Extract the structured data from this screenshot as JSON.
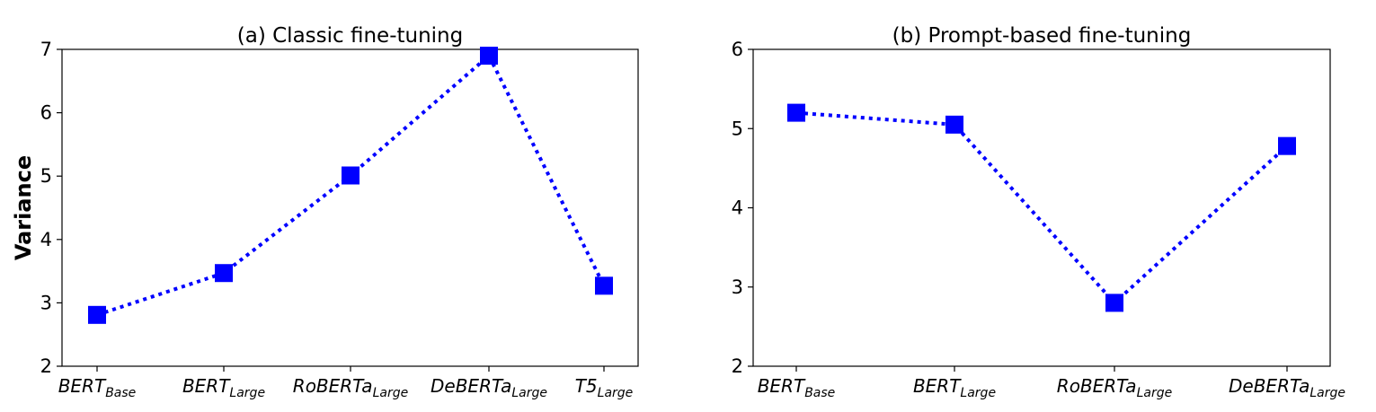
{
  "chart_data": [
    {
      "type": "line",
      "title": "(a) Classic fine-tuning",
      "ylabel": "Variance",
      "xlabel": "",
      "ylim": [
        2,
        7
      ],
      "yticks": [
        2,
        3,
        4,
        5,
        6,
        7
      ],
      "categories": [
        {
          "base": "BERT",
          "sub": "Base"
        },
        {
          "base": "BERT",
          "sub": "Large"
        },
        {
          "base": "RoBERTa",
          "sub": "Large"
        },
        {
          "base": "DeBERTa",
          "sub": "Large"
        },
        {
          "base": "T5",
          "sub": "Large"
        }
      ],
      "values": [
        2.81,
        3.47,
        5.01,
        6.9,
        3.27
      ],
      "color": "#0000ff",
      "marker": "square",
      "line_style": "dotted",
      "grid": false
    },
    {
      "type": "line",
      "title": "(b) Prompt-based fine-tuning",
      "ylabel": "",
      "xlabel": "",
      "ylim": [
        2,
        6
      ],
      "yticks": [
        2,
        3,
        4,
        5,
        6
      ],
      "categories": [
        {
          "base": "BERT",
          "sub": "Base"
        },
        {
          "base": "BERT",
          "sub": "Large"
        },
        {
          "base": "RoBERTa",
          "sub": "Large"
        },
        {
          "base": "DeBERTa",
          "sub": "Large"
        }
      ],
      "values": [
        5.2,
        5.05,
        2.8,
        4.78
      ],
      "color": "#0000ff",
      "marker": "square",
      "line_style": "dotted",
      "grid": false
    }
  ]
}
